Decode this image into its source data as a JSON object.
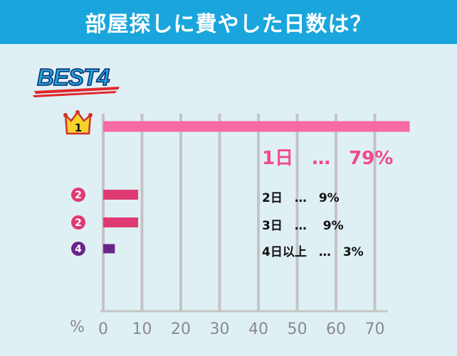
{
  "header": {
    "title": "部屋探しに費やした日数は？"
  },
  "badge": {
    "text": "BEST4"
  },
  "chart_data": {
    "type": "bar",
    "orientation": "horizontal",
    "title": "部屋探しに費やした日数は？",
    "unit_label": "%",
    "xlim": [
      0,
      79
    ],
    "xticks": [
      0,
      10,
      20,
      30,
      40,
      50,
      60,
      70
    ],
    "grid": true,
    "items": [
      {
        "rank": "1",
        "category": "1日",
        "value": 79,
        "label": "1日　…　79%",
        "color": "#f86aa3"
      },
      {
        "rank": "2",
        "category": "2日",
        "value": 9,
        "label": "2日　…　9%",
        "color": "#e03a73"
      },
      {
        "rank": "2",
        "category": "3日",
        "value": 9,
        "label": "3日　…　 9%",
        "color": "#e03a73"
      },
      {
        "rank": "4",
        "category": "4日以上",
        "value": 3,
        "label": "4日以上　…　3%",
        "color": "#6a2489"
      }
    ]
  }
}
